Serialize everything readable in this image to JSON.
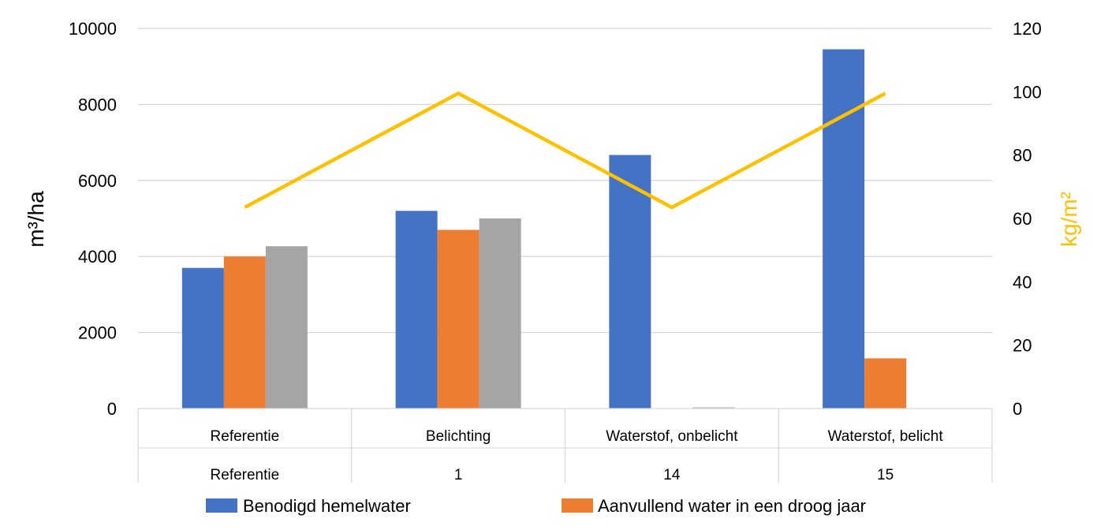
{
  "chart_data": {
    "type": "bar",
    "categories": [
      "Referentie",
      "Belichting",
      "Waterstof, onbelicht",
      "Waterstof, belicht"
    ],
    "category_sublabels": [
      "Referentie",
      "1",
      "14",
      "15"
    ],
    "series": [
      {
        "name": "Benodigd hemelwater",
        "color": "#4472C4",
        "values": [
          3700,
          5200,
          6670,
          9450
        ],
        "axis": "left",
        "kind": "bar"
      },
      {
        "name": "Aanvullend water in een droog jaar",
        "color": "#ED7D31",
        "values": [
          4000,
          4700,
          0,
          1320
        ],
        "axis": "left",
        "kind": "bar"
      },
      {
        "name": "",
        "color": "#A5A5A5",
        "values": [
          4270,
          5000,
          30,
          0
        ],
        "axis": "left",
        "kind": "bar"
      },
      {
        "name": "",
        "color": "#FFC000",
        "values": [
          63.5,
          99.5,
          63.5,
          99.5
        ],
        "axis": "right",
        "kind": "line"
      }
    ],
    "y_left": {
      "label": "m³/ha",
      "ylim": [
        0,
        10000
      ],
      "ticks": [
        "0",
        "2000",
        "4000",
        "6000",
        "8000",
        "10000"
      ],
      "tick_values": [
        0,
        2000,
        4000,
        6000,
        8000,
        10000
      ]
    },
    "y_right": {
      "label": "kg/m²",
      "label_color": "#FFC000",
      "ylim": [
        0,
        120
      ],
      "ticks": [
        "0",
        "20",
        "40",
        "60",
        "80",
        "100",
        "120"
      ],
      "tick_values": [
        0,
        20,
        40,
        60,
        80,
        100,
        120
      ]
    },
    "grid": true,
    "legend_position": "bottom"
  }
}
